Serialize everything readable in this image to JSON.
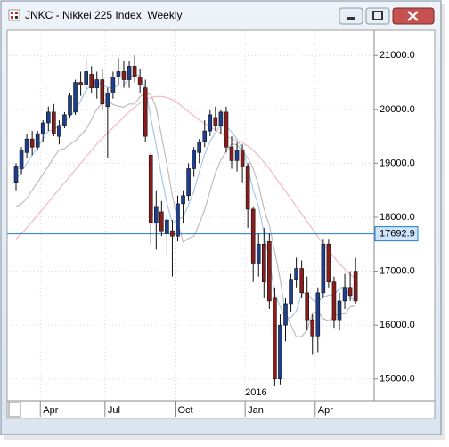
{
  "window_title": "JNKC - Nikkei 225 Index, Weekly",
  "chart_data": {
    "type": "candlestick",
    "categories": [
      null,
      null,
      null,
      null,
      null,
      "Apr",
      null,
      null,
      null,
      null,
      null,
      null,
      null,
      null,
      null,
      null,
      null,
      "Jul",
      null,
      null,
      null,
      null,
      null,
      null,
      null,
      null,
      null,
      null,
      null,
      null,
      "Oct",
      null,
      null,
      null,
      null,
      null,
      null,
      null,
      null,
      null,
      null,
      null,
      null,
      "Jan",
      null,
      null,
      null,
      null,
      null,
      null,
      null,
      null,
      null,
      null,
      null,
      null,
      "Apr",
      null,
      null,
      null,
      null,
      null,
      null,
      null
    ],
    "year_label": "2016",
    "open": [
      18650,
      18900,
      19200,
      19450,
      19300,
      19550,
      19750,
      19950,
      19500,
      19700,
      19900,
      19950,
      20500,
      20450,
      20650,
      20400,
      20550,
      20050,
      20300,
      20600,
      20700,
      20550,
      20800,
      20600,
      20400,
      19150,
      17900,
      18100,
      17700,
      17750,
      17650,
      18250,
      18400,
      18900,
      19200,
      19400,
      19600,
      19850,
      19700,
      19950,
      19300,
      19050,
      19250,
      18950,
      18150,
      17150,
      17500,
      17550,
      16500,
      15000,
      16000,
      16400,
      16850,
      17050,
      16600,
      16100,
      15800,
      16600,
      17500,
      16800,
      16100,
      16450,
      16700,
      17000
    ],
    "high": [
      19000,
      19300,
      19550,
      19600,
      19600,
      19800,
      20050,
      20100,
      19800,
      19950,
      20300,
      20550,
      20700,
      20950,
      20800,
      20700,
      20750,
      20400,
      20700,
      20950,
      20900,
      20900,
      21000,
      20750,
      20550,
      19200,
      18500,
      18300,
      18050,
      17950,
      18400,
      18500,
      19000,
      19300,
      19450,
      19800,
      20000,
      20050,
      20000,
      20050,
      19500,
      19400,
      19350,
      19000,
      18200,
      17700,
      17800,
      17700,
      16700,
      16200,
      16500,
      16950,
      17250,
      17200,
      16900,
      16200,
      16700,
      17600,
      17600,
      16900,
      16600,
      16950,
      17000,
      17250
    ],
    "low": [
      18500,
      18800,
      19100,
      19150,
      19250,
      19400,
      19600,
      19500,
      19350,
      19650,
      19850,
      19900,
      20250,
      20350,
      20300,
      20200,
      20000,
      19100,
      20200,
      20450,
      20400,
      20400,
      20500,
      20300,
      19400,
      17500,
      17400,
      17650,
      17300,
      16900,
      17550,
      17900,
      18300,
      18750,
      19000,
      19300,
      19500,
      19600,
      19550,
      19200,
      18900,
      18850,
      18650,
      17800,
      16800,
      16900,
      16500,
      16300,
      14870,
      14900,
      15700,
      16250,
      16700,
      16500,
      15900,
      15450,
      15500,
      16500,
      16700,
      15950,
      15900,
      16300,
      16450,
      16400
    ],
    "close": [
      18950,
      19250,
      19450,
      19300,
      19550,
      19750,
      19950,
      19550,
      19700,
      19900,
      20250,
      20500,
      20450,
      20700,
      20400,
      20550,
      20100,
      20300,
      20600,
      20700,
      20550,
      20800,
      20600,
      20450,
      19500,
      17900,
      18200,
      17750,
      17950,
      17650,
      18250,
      18400,
      18900,
      19250,
      19400,
      19600,
      19900,
      19700,
      19950,
      19300,
      19050,
      19250,
      18950,
      18150,
      17150,
      17500,
      16800,
      16450,
      15000,
      16000,
      16400,
      16850,
      17050,
      16600,
      16100,
      15800,
      16600,
      17500,
      16800,
      16100,
      16450,
      16700,
      16550,
      16450
    ],
    "up_color": "#1f3f8c",
    "down_color": "#8a1c1c",
    "series": [
      {
        "color": "#a9c8ea",
        "values": [
          18700,
          18850,
          19000,
          19150,
          19300,
          19460,
          19600,
          19620,
          19700,
          19770,
          19870,
          19980,
          20160,
          20360,
          20460,
          20520,
          20440,
          20410,
          20390,
          20450,
          20450,
          20590,
          20650,
          20620,
          20380,
          19850,
          19330,
          18760,
          18260,
          17890,
          17960,
          18000,
          18230,
          18490,
          18840,
          19170,
          19410,
          19570,
          19710,
          19690,
          19580,
          19450,
          19250,
          18940,
          18510,
          18200,
          17710,
          17210,
          16580,
          16350,
          16130,
          16140,
          16260,
          16580,
          16600,
          16470,
          16430,
          16520,
          16560,
          16560,
          16690,
          16710,
          16520,
          16450
        ]
      },
      {
        "color": "#bdbdbd",
        "values": [
          18200,
          18250,
          18350,
          18500,
          18650,
          18800,
          18950,
          19110,
          19250,
          19270,
          19350,
          19420,
          19520,
          19630,
          19810,
          20010,
          20110,
          20170,
          20090,
          20060,
          20040,
          20100,
          20100,
          20240,
          20300,
          20270,
          20030,
          19500,
          18980,
          18410,
          17910,
          17540,
          17610,
          17650,
          17880,
          18140,
          18490,
          18820,
          19060,
          19220,
          19360,
          19340,
          19230,
          19100,
          18900,
          18590,
          18160,
          17850,
          17360,
          16860,
          16230,
          16000,
          15780,
          15790,
          15910,
          16230,
          16250,
          16120,
          16080,
          16170,
          16210,
          16210,
          16340,
          16360
        ]
      },
      {
        "color": "#f2b8c6",
        "values": [
          17600,
          17700,
          17800,
          17920,
          18040,
          18160,
          18280,
          18400,
          18520,
          18640,
          18760,
          18880,
          19000,
          19120,
          19240,
          19360,
          19460,
          19560,
          19660,
          19760,
          19860,
          19960,
          20040,
          20120,
          20180,
          20220,
          20240,
          20240,
          20220,
          20180,
          20120,
          20040,
          19960,
          19880,
          19800,
          19740,
          19680,
          19620,
          19560,
          19500,
          19460,
          19420,
          19380,
          19320,
          19240,
          19140,
          19020,
          18900,
          18760,
          18620,
          18480,
          18340,
          18200,
          18060,
          17920,
          17780,
          17640,
          17500,
          17380,
          17260,
          17140,
          17040,
          16940,
          16860
        ]
      }
    ],
    "ylim": [
      14600,
      21450
    ],
    "yticks": [
      {
        "value": 15000,
        "label": "15000.0"
      },
      {
        "value": 16000,
        "label": "16000.0"
      },
      {
        "value": 17000,
        "label": "17000.0"
      },
      {
        "value": 18000,
        "label": "18000.0"
      },
      {
        "value": 19000,
        "label": "19000.0"
      },
      {
        "value": 20000,
        "label": "20000.0"
      },
      {
        "value": 21000,
        "label": "21000.0"
      }
    ],
    "level": {
      "value": 17692.9,
      "label": "17692.9",
      "color": "#1c7ed6"
    },
    "grid": true
  }
}
